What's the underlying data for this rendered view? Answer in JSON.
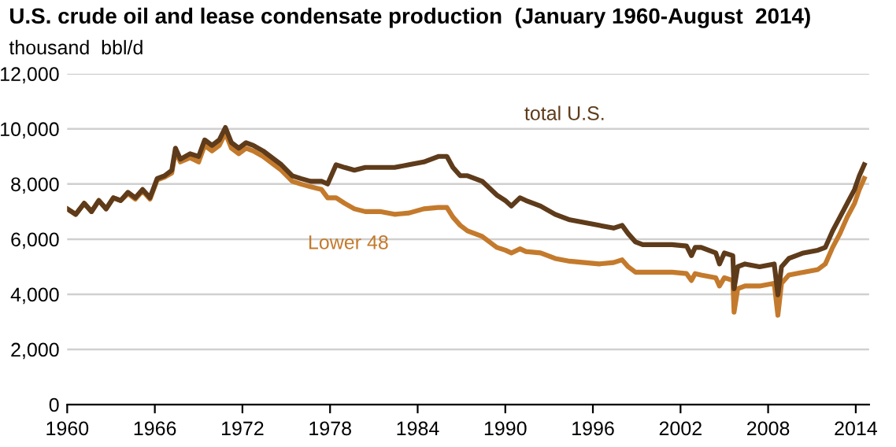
{
  "chart_data": {
    "type": "line",
    "title": "U.S. crude oil and lease condensate production  (January 1960-August  2014)",
    "ylabel": "thousand  bbl/d",
    "x": [
      "1960-01",
      "1960-08",
      "1961-03",
      "1961-09",
      "1962-03",
      "1962-09",
      "1963-03",
      "1963-09",
      "1964-03",
      "1964-09",
      "1965-03",
      "1965-09",
      "1966-03",
      "1966-09",
      "1967-03",
      "1967-06",
      "1967-10",
      "1968-06",
      "1969-01",
      "1969-06",
      "1969-12",
      "1970-06",
      "1970-11",
      "1971-04",
      "1971-10",
      "1972-04",
      "1972-10",
      "1973-06",
      "1974-03",
      "1974-09",
      "1975-06",
      "1976-01",
      "1976-09",
      "1977-06",
      "1977-11",
      "1978-06",
      "1979-01",
      "1979-09",
      "1980-06",
      "1981-06",
      "1982-06",
      "1983-06",
      "1984-06",
      "1985-06",
      "1986-01",
      "1986-06",
      "1986-12",
      "1987-06",
      "1988-06",
      "1989-06",
      "1990-01",
      "1990-06",
      "1991-01",
      "1991-06",
      "1992-06",
      "1993-06",
      "1994-06",
      "1995-06",
      "1996-06",
      "1997-06",
      "1998-01",
      "1998-06",
      "1998-12",
      "1999-06",
      "2000-06",
      "2001-06",
      "2002-06",
      "2002-10",
      "2003-01",
      "2003-06",
      "2004-06",
      "2004-09",
      "2005-01",
      "2005-08",
      "2005-09",
      "2005-12",
      "2006-06",
      "2007-06",
      "2008-06",
      "2008-09",
      "2008-12",
      "2009-06",
      "2010-06",
      "2011-06",
      "2011-12",
      "2012-06",
      "2012-12",
      "2013-06",
      "2013-12",
      "2014-04",
      "2014-08"
    ],
    "series": [
      {
        "name": "Lower 48",
        "color": "#c47a2c",
        "values": [
          7100,
          6900,
          7300,
          7000,
          7400,
          7100,
          7500,
          7400,
          7650,
          7450,
          7750,
          7450,
          8150,
          8250,
          8400,
          9200,
          8800,
          8950,
          8800,
          9400,
          9200,
          9400,
          9850,
          9300,
          9100,
          9300,
          9200,
          9000,
          8700,
          8500,
          8100,
          8000,
          7900,
          7800,
          7500,
          7500,
          7300,
          7100,
          7000,
          7000,
          6900,
          6950,
          7100,
          7150,
          7150,
          6800,
          6500,
          6300,
          6100,
          5700,
          5600,
          5500,
          5650,
          5550,
          5500,
          5300,
          5200,
          5150,
          5100,
          5150,
          5250,
          5000,
          4800,
          4800,
          4800,
          4800,
          4750,
          4500,
          4750,
          4700,
          4600,
          4300,
          4600,
          4500,
          3350,
          4200,
          4300,
          4300,
          4400,
          3240,
          4400,
          4700,
          4800,
          4900,
          5100,
          5700,
          6200,
          6800,
          7300,
          7800,
          8200
        ]
      },
      {
        "name": "total U.S.",
        "color": "#5e3b1a",
        "values": [
          7100,
          6900,
          7300,
          7000,
          7400,
          7100,
          7500,
          7400,
          7700,
          7500,
          7800,
          7500,
          8200,
          8300,
          8500,
          9300,
          8900,
          9100,
          9000,
          9600,
          9400,
          9600,
          10050,
          9500,
          9300,
          9500,
          9400,
          9200,
          8900,
          8700,
          8300,
          8200,
          8100,
          8100,
          8000,
          8700,
          8600,
          8500,
          8600,
          8600,
          8600,
          8700,
          8800,
          9000,
          9000,
          8600,
          8300,
          8300,
          8100,
          7600,
          7400,
          7200,
          7500,
          7400,
          7200,
          6900,
          6700,
          6600,
          6500,
          6400,
          6500,
          6200,
          5900,
          5800,
          5800,
          5800,
          5750,
          5400,
          5700,
          5700,
          5500,
          5100,
          5500,
          5400,
          4200,
          5000,
          5100,
          5000,
          5100,
          3980,
          5000,
          5300,
          5500,
          5600,
          5700,
          6300,
          6800,
          7300,
          7800,
          8300,
          8700
        ]
      }
    ],
    "xlim": [
      "1960-01",
      "2014-12"
    ],
    "xticks": [
      "1960",
      "1966",
      "1972",
      "1978",
      "1984",
      "1990",
      "1996",
      "2002",
      "2008",
      "2014"
    ],
    "ylim": [
      0,
      12000
    ],
    "yticks": [
      0,
      {
        "value": 2000,
        "label": "2,000"
      },
      {
        "value": 4000,
        "label": "4,000"
      },
      {
        "value": 6000,
        "label": "6,000"
      },
      {
        "value": 8000,
        "label": "8,000"
      },
      {
        "value": 10000,
        "label": "10,000"
      },
      {
        "value": 12000,
        "label": "12,000"
      }
    ],
    "grid": "y",
    "legend": false,
    "line_style": "solid",
    "marker": "none"
  }
}
